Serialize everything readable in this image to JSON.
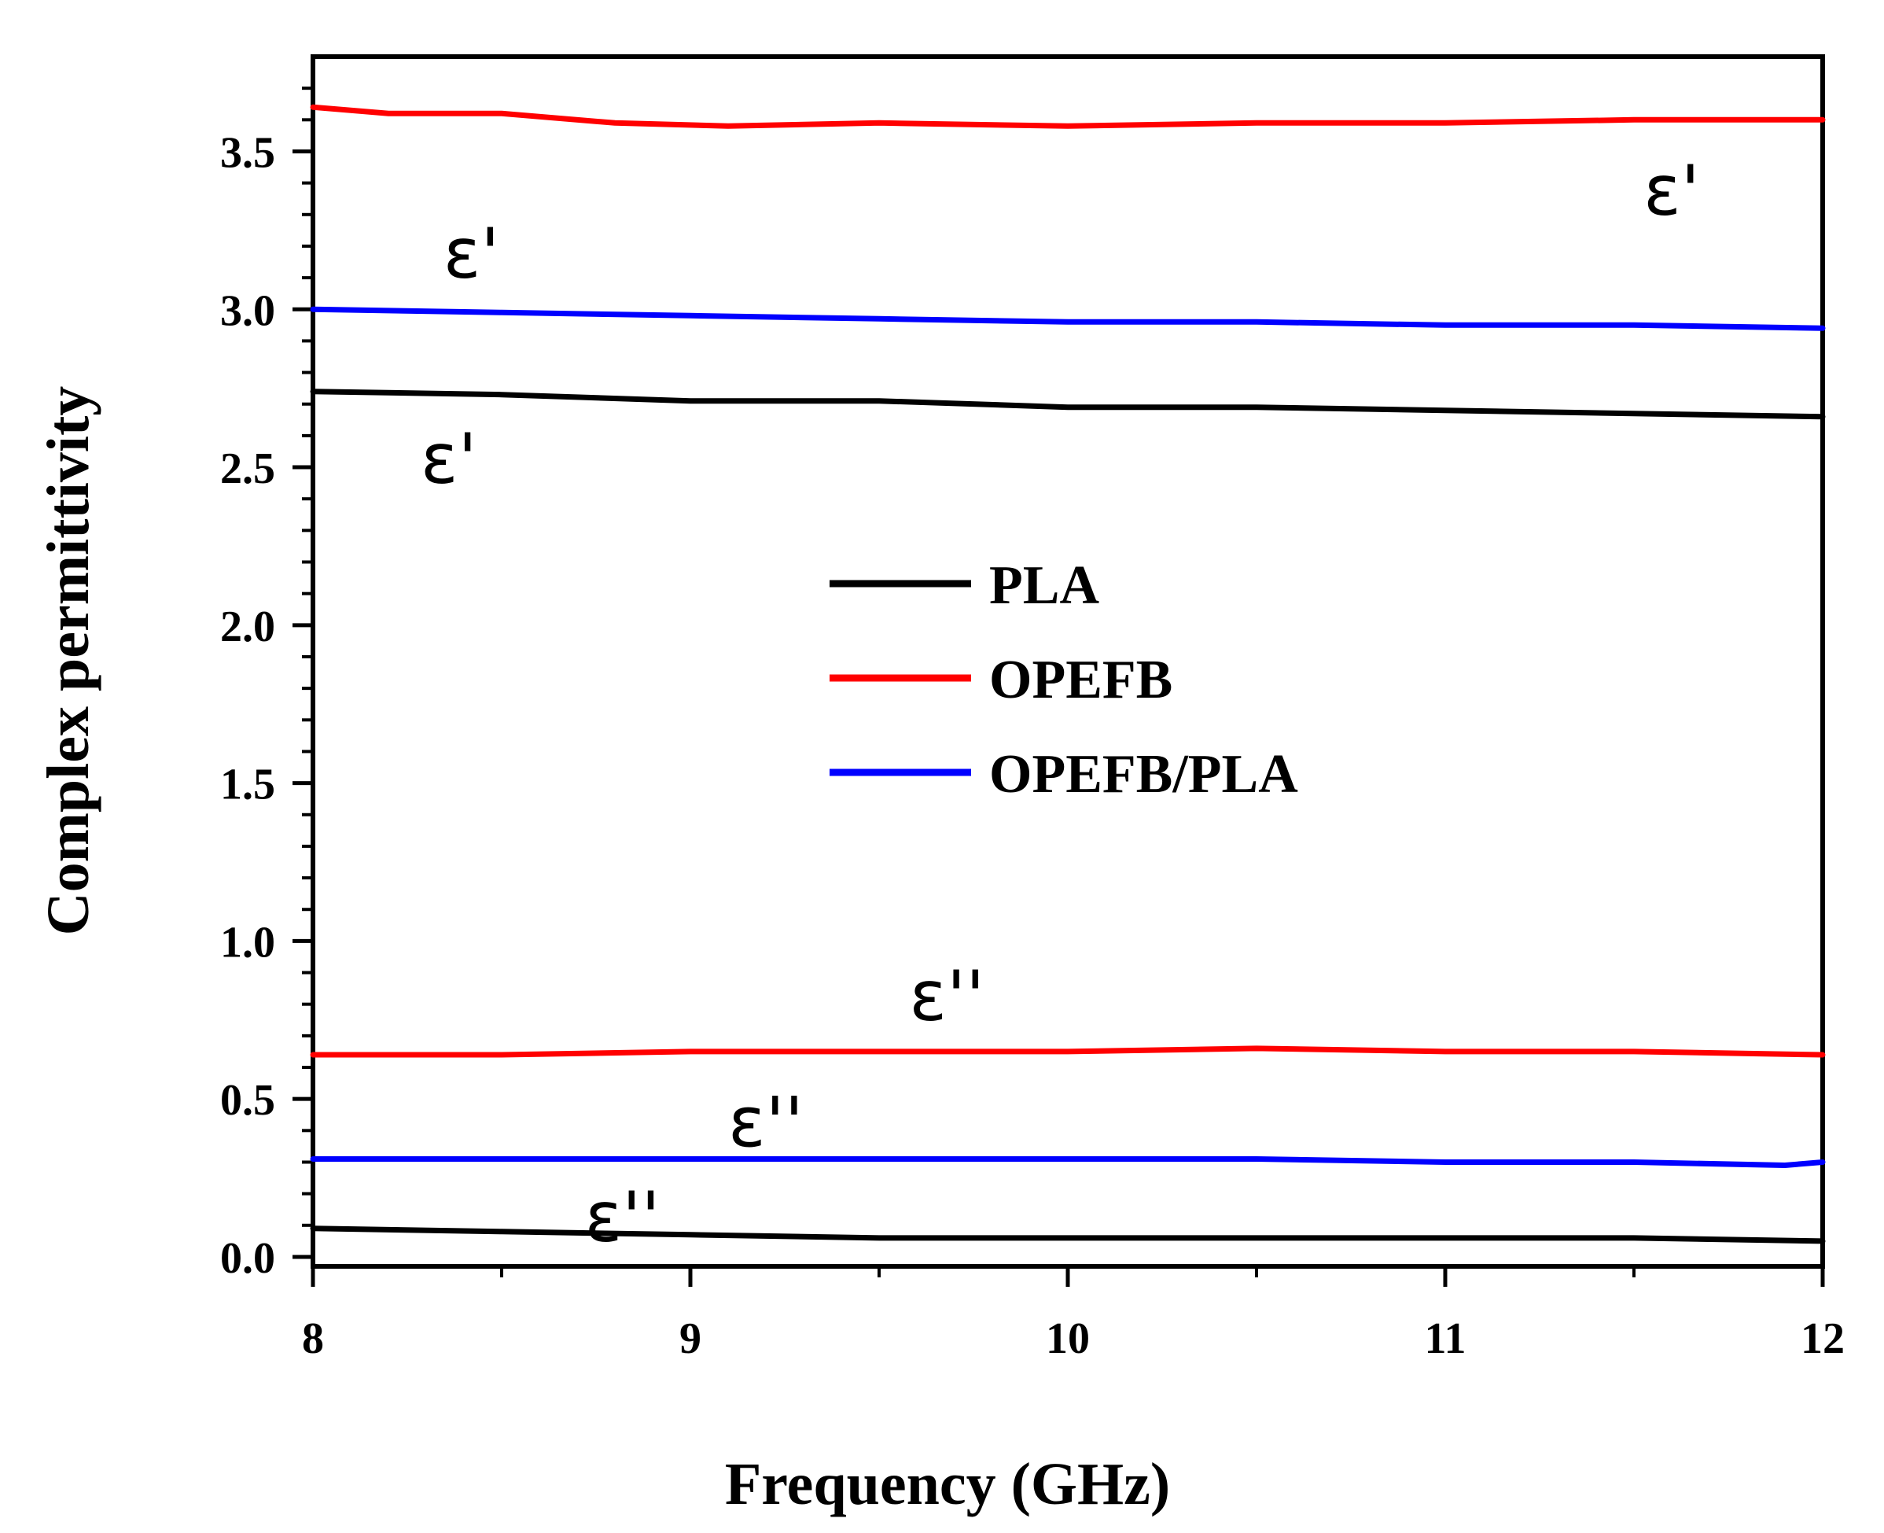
{
  "chart_data": {
    "type": "line",
    "title": "",
    "xlabel": "Frequency (GHz)",
    "ylabel": "Complex permittivity",
    "xlim": [
      8,
      12
    ],
    "ylim": [
      -0.03,
      3.8
    ],
    "xticks": [
      8,
      9,
      10,
      11,
      12
    ],
    "yticks": [
      0.0,
      0.5,
      1.0,
      1.5,
      2.0,
      2.5,
      3.0,
      3.5
    ],
    "ytick_labels": [
      "0.0",
      "0.5",
      "1.0",
      "1.5",
      "2.0",
      "2.5",
      "3.0",
      "3.5"
    ],
    "grid": false,
    "legend_position": "center",
    "series": [
      {
        "name": "PLA",
        "quantity": "ε'",
        "color": "#000000",
        "x": [
          8.0,
          8.5,
          9.0,
          9.5,
          10.0,
          10.5,
          11.0,
          11.5,
          12.0
        ],
        "y": [
          2.74,
          2.73,
          2.71,
          2.71,
          2.69,
          2.69,
          2.68,
          2.67,
          2.66
        ]
      },
      {
        "name": "PLA",
        "quantity": "ε''",
        "color": "#000000",
        "x": [
          8.0,
          8.5,
          9.0,
          9.5,
          10.0,
          10.5,
          11.0,
          11.5,
          12.0
        ],
        "y": [
          0.09,
          0.08,
          0.07,
          0.06,
          0.06,
          0.06,
          0.06,
          0.06,
          0.05
        ]
      },
      {
        "name": "OPEFB",
        "quantity": "ε'",
        "color": "#ff0000",
        "x": [
          8.0,
          8.2,
          8.5,
          8.8,
          9.1,
          9.5,
          10.0,
          10.5,
          11.0,
          11.5,
          12.0
        ],
        "y": [
          3.64,
          3.62,
          3.62,
          3.59,
          3.58,
          3.59,
          3.58,
          3.59,
          3.59,
          3.6,
          3.6
        ]
      },
      {
        "name": "OPEFB",
        "quantity": "ε''",
        "color": "#ff0000",
        "x": [
          8.0,
          8.5,
          9.0,
          9.5,
          10.0,
          10.5,
          11.0,
          11.5,
          12.0
        ],
        "y": [
          0.64,
          0.64,
          0.65,
          0.65,
          0.65,
          0.66,
          0.65,
          0.65,
          0.64
        ]
      },
      {
        "name": "OPEFB/PLA",
        "quantity": "ε'",
        "color": "#0000ff",
        "x": [
          8.0,
          8.5,
          9.0,
          9.5,
          10.0,
          10.5,
          11.0,
          11.5,
          12.0
        ],
        "y": [
          3.0,
          2.99,
          2.98,
          2.97,
          2.96,
          2.96,
          2.95,
          2.95,
          2.94
        ]
      },
      {
        "name": "OPEFB/PLA",
        "quantity": "ε''",
        "color": "#0000ff",
        "x": [
          8.0,
          8.5,
          9.0,
          9.5,
          10.0,
          10.5,
          11.0,
          11.5,
          11.9,
          12.0
        ],
        "y": [
          0.31,
          0.31,
          0.31,
          0.31,
          0.31,
          0.31,
          0.3,
          0.3,
          0.29,
          0.3
        ]
      }
    ],
    "legend": [
      {
        "label": "PLA",
        "color": "#000000"
      },
      {
        "label": "OPEFB",
        "color": "#ff0000"
      },
      {
        "label": "OPEFB/PLA",
        "color": "#0000ff"
      }
    ],
    "annotations": [
      {
        "text": "ε'",
        "x": 8.42,
        "y": 3.1
      },
      {
        "text": "ε'",
        "x": 11.6,
        "y": 3.3
      },
      {
        "text": "ε'",
        "x": 8.36,
        "y": 2.45
      },
      {
        "text": "ε''",
        "x": 9.68,
        "y": 0.75
      },
      {
        "text": "ε''",
        "x": 9.2,
        "y": 0.35
      },
      {
        "text": "ε''",
        "x": 8.82,
        "y": 0.05
      }
    ]
  }
}
